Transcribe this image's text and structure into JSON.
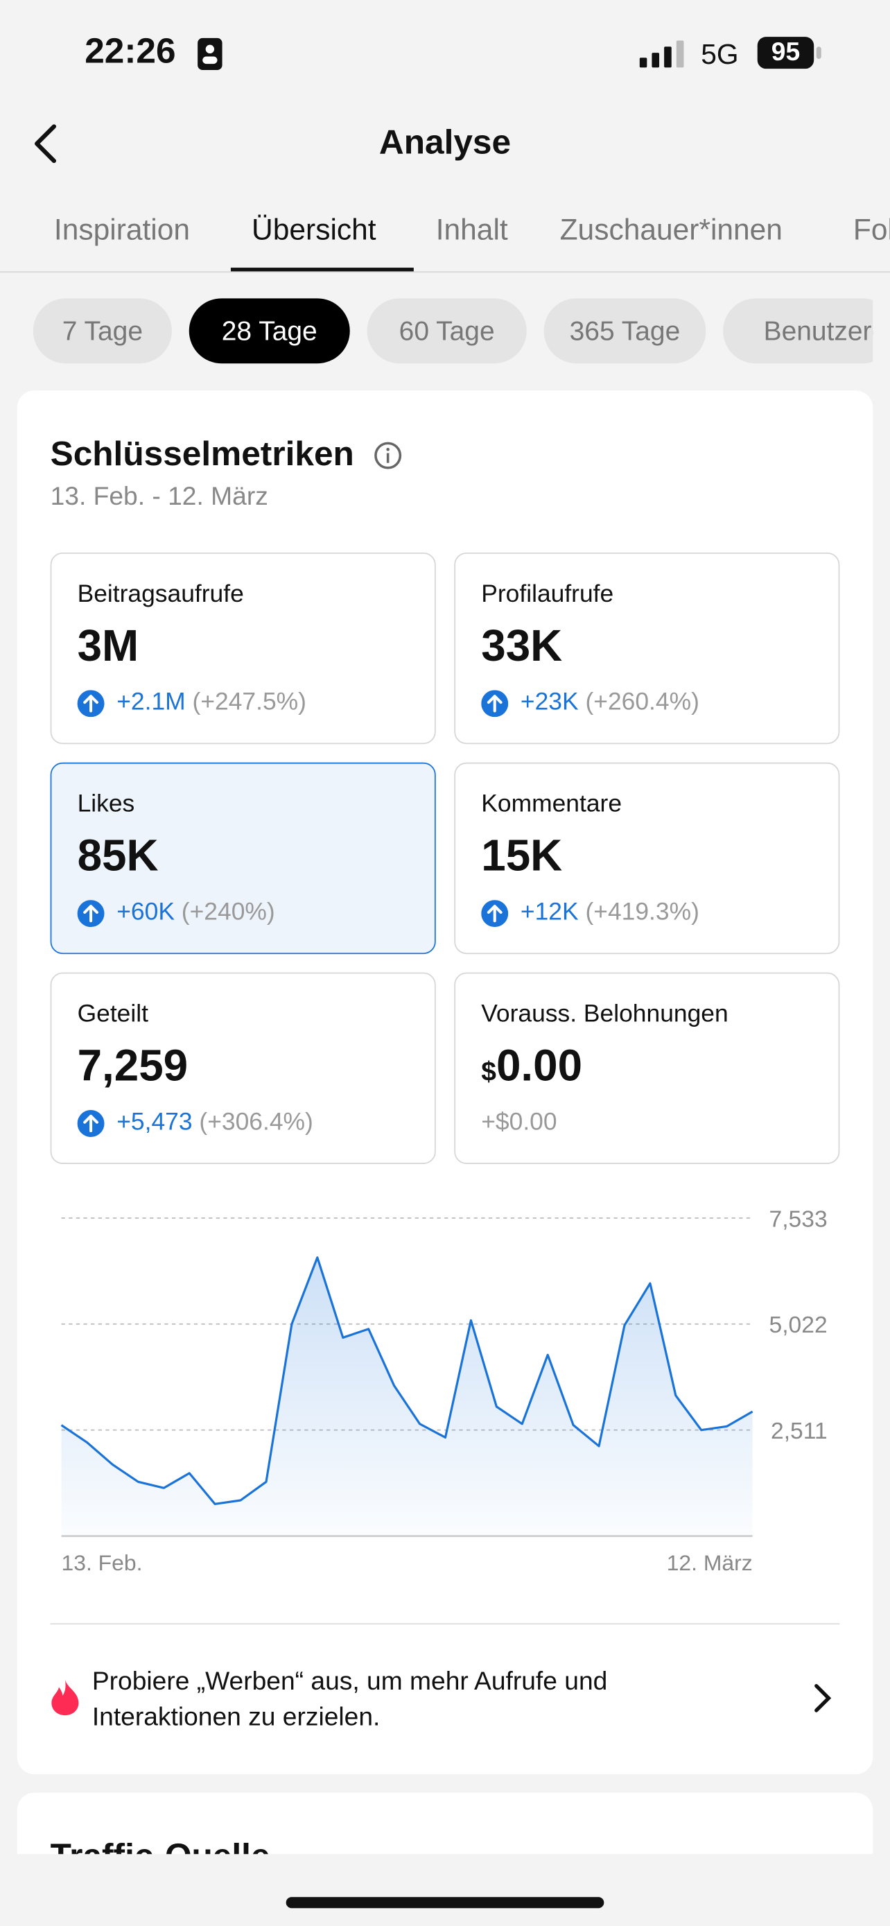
{
  "status_bar": {
    "time": "22:26",
    "network": "5G",
    "battery": "95"
  },
  "header": {
    "title": "Analyse"
  },
  "tabs": [
    "Inspiration",
    "Übersicht",
    "Inhalt",
    "Zuschauer*innen",
    "Follower"
  ],
  "active_tab": 1,
  "periods": [
    "7 Tage",
    "28 Tage",
    "60 Tage",
    "365 Tage",
    "Benutzerdefiniert"
  ],
  "active_period": 1,
  "key_metrics": {
    "title": "Schlüsselmetriken",
    "date_range": "13. Feb. - 12. März",
    "metrics": [
      {
        "label": "Beitragsaufrufe",
        "value": "3M",
        "change": "+2.1M",
        "percent": "(+247.5%)"
      },
      {
        "label": "Profilaufrufe",
        "value": "33K",
        "change": "+23K",
        "percent": "(+260.4%)"
      },
      {
        "label": "Likes",
        "value": "85K",
        "change": "+60K",
        "percent": "(+240%)"
      },
      {
        "label": "Kommentare",
        "value": "15K",
        "change": "+12K",
        "percent": "(+419.3%)"
      },
      {
        "label": "Geteilt",
        "value": "7,259",
        "change": "+5,473",
        "percent": "(+306.4%)"
      },
      {
        "label": "Vorauss. Belohnungen",
        "currency": "$",
        "value": "0.00",
        "change": "+$0.00"
      }
    ],
    "selected_metric": 2
  },
  "chart_data": {
    "type": "area",
    "color": "#1a73d9",
    "categories": [
      "13. Feb.",
      null,
      null,
      null,
      null,
      null,
      null,
      null,
      null,
      null,
      null,
      null,
      null,
      null,
      null,
      null,
      null,
      null,
      null,
      null,
      null,
      null,
      null,
      null,
      null,
      null,
      null,
      "12. März"
    ],
    "values": [
      2628,
      2219,
      1693,
      1285,
      1139,
      1489,
      759,
      847,
      1285,
      5022,
      6599,
      4701,
      4905,
      3562,
      2657,
      2336,
      5110,
      3066,
      2657,
      4292,
      2628,
      2131,
      4993,
      5986,
      3329,
      2511,
      2599,
      2949
    ],
    "ylim": [
      0,
      7533
    ],
    "yticks": [
      {
        "value": 2511,
        "label": "2,511"
      },
      {
        "value": 5022,
        "label": "5,022"
      },
      {
        "value": 7533,
        "label": "7,533"
      }
    ],
    "grid": true
  },
  "promo": {
    "text": "Probiere „Werben“ aus, um mehr Aufrufe und Interaktionen zu erzielen."
  },
  "next_section": {
    "title": "Traffic-Quelle"
  }
}
